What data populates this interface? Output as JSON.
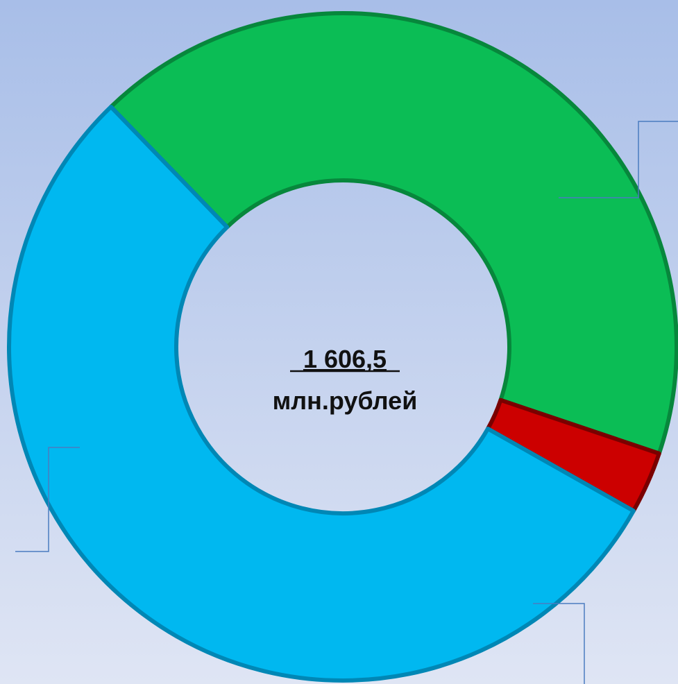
{
  "chart_data": {
    "type": "donut",
    "center_value": "1 606,5",
    "center_unit": "млн.рублей",
    "values": [
      42.4,
      3.0,
      54.6
    ],
    "colors": [
      "#0bbd55",
      "#cc0000",
      "#00b8f0"
    ],
    "edge_colors": [
      "#07873c",
      "#7a0000",
      "#0087b5"
    ],
    "start_angle": -44
  }
}
